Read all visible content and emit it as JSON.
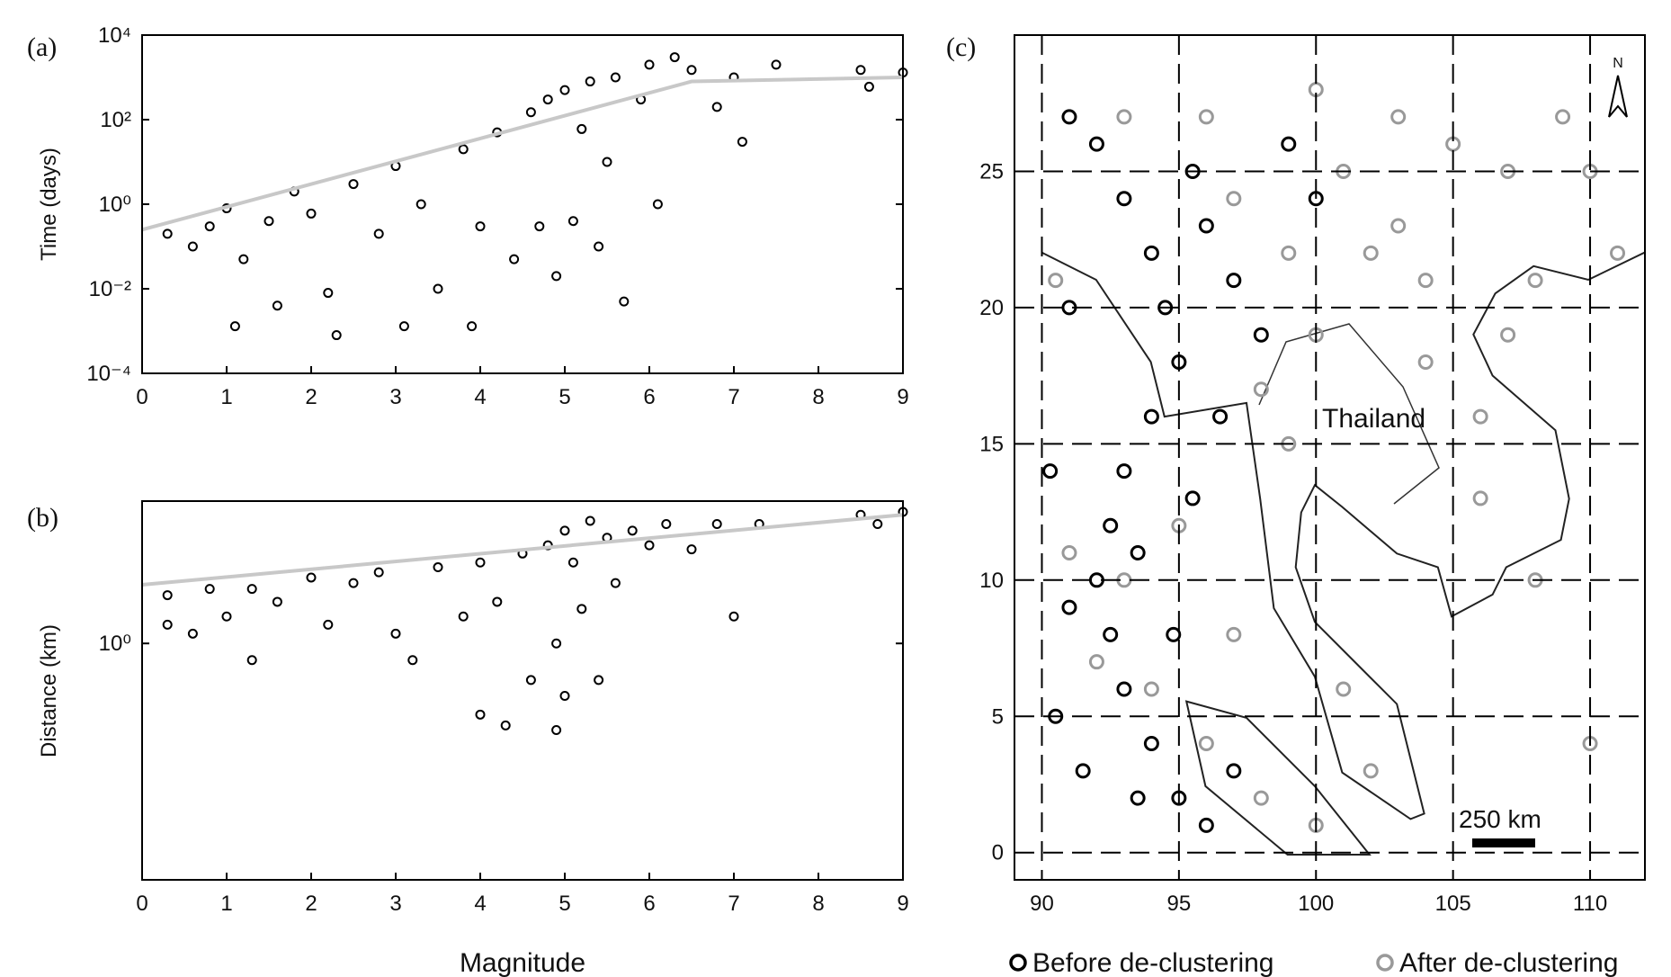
{
  "chart_data": [
    {
      "type": "scatter",
      "label": "(a)",
      "ylabel": "Time (days)",
      "log_y": true,
      "xlim": [
        0,
        9
      ],
      "xticks": [
        0,
        1,
        2,
        3,
        4,
        5,
        6,
        7,
        8,
        9
      ],
      "ylim": [
        0.0001,
        10000
      ],
      "yticks": [
        {
          "value": 0.0001,
          "label": "10⁻⁴"
        },
        {
          "value": 0.01,
          "label": "10⁻²"
        },
        {
          "value": 1,
          "label": "10⁰"
        },
        {
          "value": 100,
          "label": "10²"
        },
        {
          "value": 10000,
          "label": "10⁴"
        }
      ],
      "series": [
        {
          "color": "#000000",
          "x": [
            0.3,
            0.6,
            0.8,
            1,
            1.2,
            1.1,
            1.5,
            1.6,
            1.8,
            2,
            2.2,
            2.3,
            2.5,
            2.8,
            3,
            3.1,
            3.3,
            3.5,
            3.8,
            3.9,
            4,
            4.2,
            4.4,
            4.6,
            4.7,
            4.8,
            4.9,
            5,
            5.1,
            5.2,
            5.3,
            5.4,
            5.5,
            5.6,
            5.7,
            5.9,
            6,
            6.1,
            6.3,
            6.5,
            6.8,
            7,
            7.1,
            7.5,
            8.5,
            8.6,
            9
          ],
          "values": [
            0.2,
            0.1,
            0.3,
            0.8,
            0.05,
            0.0013,
            0.4,
            0.004,
            2,
            0.6,
            0.008,
            0.0008,
            3,
            0.2,
            8,
            0.0013,
            1,
            0.01,
            20,
            0.0013,
            0.3,
            50,
            0.05,
            150,
            0.3,
            300,
            0.02,
            500,
            0.4,
            60,
            800,
            0.1,
            10,
            1000,
            0.005,
            300,
            2000,
            1,
            3000,
            1500,
            200,
            1000,
            30,
            2000,
            1500,
            600,
            1300
          ]
        }
      ],
      "fit": {
        "color": "#c8c8c8",
        "x": [
          0,
          6.5,
          9
        ],
        "values": [
          0.25,
          800,
          1000
        ]
      }
    },
    {
      "type": "scatter",
      "label": "(b)",
      "ylabel": "Distance (km)",
      "xlabel": "Magnitude",
      "log_y": true,
      "xlim": [
        0,
        9
      ],
      "xticks": [
        0,
        1,
        2,
        3,
        4,
        5,
        6,
        7,
        8,
        9
      ],
      "ylim": [
        0.1,
        4
      ],
      "yticks": [
        {
          "value": 1,
          "label": "10⁰"
        }
      ],
      "series": [
        {
          "color": "#000000",
          "x": [
            0.3,
            0.3,
            0.6,
            0.8,
            1,
            1.3,
            1.3,
            1.6,
            2,
            2.2,
            2.5,
            2.8,
            3,
            3.2,
            3.5,
            3.8,
            4,
            4,
            4.2,
            4.3,
            4.5,
            4.6,
            4.8,
            4.9,
            4.9,
            5,
            5,
            5.1,
            5.2,
            5.3,
            5.4,
            5.5,
            5.6,
            5.8,
            6,
            6.2,
            6.5,
            6.8,
            7,
            7.3,
            8.5,
            8.7,
            9
          ],
          "values": [
            1.2,
            1.6,
            1.1,
            1.7,
            1.3,
            1.7,
            0.85,
            1.5,
            1.9,
            1.2,
            1.8,
            2.0,
            1.1,
            0.85,
            2.1,
            1.3,
            2.2,
            0.5,
            1.5,
            0.45,
            2.4,
            0.7,
            2.6,
            1.0,
            0.43,
            3,
            0.6,
            2.2,
            1.4,
            3.3,
            0.7,
            2.8,
            1.8,
            3,
            2.6,
            3.2,
            2.5,
            3.2,
            1.3,
            3.2,
            3.5,
            3.2,
            3.6
          ]
        }
      ],
      "fit": {
        "color": "#c8c8c8",
        "x": [
          0,
          9
        ],
        "values": [
          1.77,
          3.5
        ]
      }
    },
    {
      "type": "map",
      "label": "(c)",
      "grid": true,
      "xlim": [
        89,
        112
      ],
      "xticks": [
        90,
        95,
        100,
        105,
        110
      ],
      "ylim": [
        -1,
        30
      ],
      "yticks": [
        0,
        5,
        10,
        15,
        20,
        25
      ],
      "annotations": [
        "Thailand",
        "250 km",
        "N"
      ],
      "series": [
        {
          "name": "Before de-clustering",
          "color": "#000000",
          "x": [
            91,
            92,
            93,
            94,
            94.5,
            95,
            94,
            93,
            92.5,
            92,
            92.5,
            93,
            94,
            95,
            96,
            97,
            93.5,
            91,
            90.5,
            91.5,
            95.5,
            96,
            97,
            98,
            99,
            100,
            96.5,
            95.5,
            94.8,
            93.5,
            91,
            90.3
          ],
          "values": [
            27,
            26,
            24,
            22,
            20,
            18,
            16,
            14,
            12,
            10,
            8,
            6,
            4,
            2,
            1,
            3,
            11,
            9,
            5,
            3,
            25,
            23,
            21,
            19,
            26,
            24,
            16,
            13,
            8,
            2,
            20,
            14
          ]
        },
        {
          "name": "After de-clustering",
          "color": "#999999",
          "x": [
            93,
            96,
            100,
            103,
            105,
            107,
            101,
            99,
            97,
            102,
            104,
            108,
            100,
            98,
            99,
            95,
            93,
            94,
            96,
            98,
            100,
            102,
            91,
            90.5,
            110,
            111,
            107,
            106,
            108,
            110,
            104,
            106,
            92,
            97,
            101,
            103,
            109
          ],
          "values": [
            27,
            27,
            28,
            27,
            26,
            25,
            25,
            22,
            24,
            22,
            21,
            21,
            19,
            17,
            15,
            12,
            10,
            6,
            4,
            2,
            1,
            3,
            11,
            21,
            25,
            22,
            19,
            13,
            10,
            4,
            18,
            16,
            7,
            8,
            6,
            23,
            27
          ]
        }
      ]
    }
  ]
}
